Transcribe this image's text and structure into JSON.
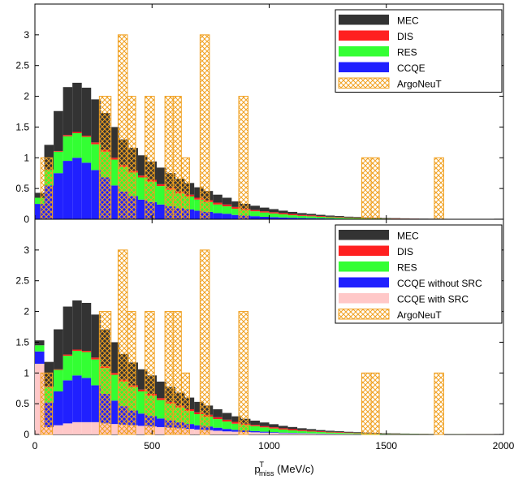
{
  "colors": {
    "MEC": "#333333",
    "DIS": "#ff2020",
    "RES": "#33ff33",
    "CCQE": "#2020ff",
    "CCQE_SRC": "#ffc8c8",
    "ArgoNeuT": "#f0a020"
  },
  "xaxis": {
    "label_main": "p",
    "label_sup": "T",
    "label_sub": "miss",
    "label_unit": " (MeV/c)",
    "ticks": [
      0,
      500,
      1000,
      1500,
      2000
    ],
    "tick_labels": [
      "0",
      "500",
      "1000",
      "1500",
      "2000"
    ]
  },
  "chart_data": [
    {
      "type": "bar",
      "stacked": true,
      "xlim": [
        0,
        2000
      ],
      "ylim": [
        0,
        3.5
      ],
      "yticks": [
        0,
        0.5,
        1,
        1.5,
        2,
        2.5,
        3
      ],
      "ytick_labels": [
        "0",
        "0.5",
        "1",
        "1.5",
        "2",
        "2.5",
        "3"
      ],
      "legend_position": "top-right",
      "bin_width": 40,
      "x": [
        20,
        60,
        100,
        140,
        180,
        220,
        260,
        300,
        340,
        380,
        420,
        460,
        500,
        540,
        580,
        620,
        660,
        700,
        740,
        780,
        820,
        860,
        900,
        940,
        980,
        1020,
        1060,
        1100,
        1140,
        1180,
        1220,
        1260,
        1300,
        1340,
        1380,
        1420,
        1460,
        1500,
        1540,
        1580,
        1620,
        1660,
        1700,
        1740,
        1780,
        1820,
        1860,
        1900,
        1940,
        1980
      ],
      "series": [
        {
          "name": "CCQE",
          "values": [
            0.25,
            0.55,
            0.75,
            0.95,
            1.0,
            0.92,
            0.8,
            0.68,
            0.55,
            0.45,
            0.38,
            0.32,
            0.28,
            0.24,
            0.21,
            0.18,
            0.16,
            0.14,
            0.12,
            0.1,
            0.09,
            0.07,
            0.06,
            0.05,
            0.04,
            0.035,
            0.03,
            0.025,
            0.02,
            0.018,
            0.015,
            0.012,
            0.01,
            0.008,
            0.007,
            0.006,
            0.005,
            0.004,
            0.003,
            0.003,
            0.002,
            0.002,
            0.002,
            0.001,
            0.001,
            0.001,
            0.001,
            0.001,
            0.001,
            0.001
          ]
        },
        {
          "name": "RES",
          "values": [
            0.1,
            0.25,
            0.35,
            0.4,
            0.4,
            0.42,
            0.42,
            0.42,
            0.42,
            0.4,
            0.38,
            0.36,
            0.33,
            0.3,
            0.27,
            0.24,
            0.21,
            0.18,
            0.16,
            0.14,
            0.12,
            0.1,
            0.09,
            0.08,
            0.07,
            0.06,
            0.05,
            0.04,
            0.035,
            0.03,
            0.025,
            0.02,
            0.017,
            0.014,
            0.012,
            0.01,
            0.008,
            0.007,
            0.006,
            0.005,
            0.004,
            0.003,
            0.003,
            0.002,
            0.002,
            0.002,
            0.001,
            0.001,
            0.001,
            0.001
          ]
        },
        {
          "name": "DIS",
          "values": [
            0.0,
            0.01,
            0.01,
            0.02,
            0.02,
            0.02,
            0.03,
            0.03,
            0.03,
            0.03,
            0.03,
            0.03,
            0.03,
            0.03,
            0.03,
            0.03,
            0.03,
            0.03,
            0.03,
            0.03,
            0.03,
            0.03,
            0.02,
            0.02,
            0.02,
            0.02,
            0.02,
            0.02,
            0.015,
            0.015,
            0.012,
            0.01,
            0.01,
            0.008,
            0.007,
            0.006,
            0.005,
            0.004,
            0.004,
            0.003,
            0.003,
            0.002,
            0.002,
            0.002,
            0.001,
            0.001,
            0.001,
            0.001,
            0.001,
            0.001
          ]
        },
        {
          "name": "MEC",
          "values": [
            0.08,
            0.4,
            0.65,
            0.78,
            0.8,
            0.78,
            0.7,
            0.6,
            0.5,
            0.42,
            0.37,
            0.33,
            0.3,
            0.27,
            0.24,
            0.21,
            0.19,
            0.17,
            0.15,
            0.13,
            0.11,
            0.09,
            0.08,
            0.07,
            0.06,
            0.05,
            0.04,
            0.035,
            0.03,
            0.025,
            0.02,
            0.018,
            0.015,
            0.012,
            0.01,
            0.008,
            0.007,
            0.006,
            0.005,
            0.004,
            0.003,
            0.003,
            0.002,
            0.002,
            0.002,
            0.001,
            0.001,
            0.001,
            0.001,
            0.005
          ]
        }
      ],
      "argoneut": {
        "name": "ArgoNeuT",
        "bins": [
          {
            "x0": 25,
            "x1": 75,
            "value": 1
          },
          {
            "x0": 275,
            "x1": 325,
            "value": 2
          },
          {
            "x0": 355,
            "x1": 395,
            "value": 3
          },
          {
            "x0": 395,
            "x1": 430,
            "value": 2
          },
          {
            "x0": 470,
            "x1": 510,
            "value": 2
          },
          {
            "x0": 555,
            "x1": 590,
            "value": 2
          },
          {
            "x0": 590,
            "x1": 625,
            "value": 2
          },
          {
            "x0": 625,
            "x1": 660,
            "value": 1
          },
          {
            "x0": 705,
            "x1": 745,
            "value": 3
          },
          {
            "x0": 870,
            "x1": 910,
            "value": 2
          },
          {
            "x0": 1395,
            "x1": 1435,
            "value": 1
          },
          {
            "x0": 1435,
            "x1": 1470,
            "value": 1
          },
          {
            "x0": 1705,
            "x1": 1745,
            "value": 1
          }
        ]
      },
      "legend": [
        "MEC",
        "DIS",
        "RES",
        "CCQE",
        "ArgoNeuT"
      ]
    },
    {
      "type": "bar",
      "stacked": true,
      "xlim": [
        0,
        2000
      ],
      "ylim": [
        0,
        3.5
      ],
      "yticks": [
        0,
        0.5,
        1,
        1.5,
        2,
        2.5,
        3
      ],
      "ytick_labels": [
        "0",
        "0.5",
        "1",
        "1.5",
        "2",
        "2.5",
        "3"
      ],
      "legend_position": "top-right",
      "bin_width": 40,
      "x": [
        20,
        60,
        100,
        140,
        180,
        220,
        260,
        300,
        340,
        380,
        420,
        460,
        500,
        540,
        580,
        620,
        660,
        700,
        740,
        780,
        820,
        860,
        900,
        940,
        980,
        1020,
        1060,
        1100,
        1140,
        1180,
        1220,
        1260,
        1300,
        1340,
        1380,
        1420,
        1460,
        1500,
        1540,
        1580,
        1620,
        1660,
        1700,
        1740,
        1780,
        1820,
        1860,
        1900,
        1940,
        1980
      ],
      "series": [
        {
          "name": "CCQE with SRC",
          "values": [
            1.15,
            0.12,
            0.15,
            0.18,
            0.2,
            0.2,
            0.2,
            0.18,
            0.17,
            0.16,
            0.15,
            0.14,
            0.13,
            0.12,
            0.11,
            0.1,
            0.09,
            0.08,
            0.07,
            0.06,
            0.05,
            0.045,
            0.04,
            0.035,
            0.03,
            0.025,
            0.02,
            0.018,
            0.015,
            0.012,
            0.01,
            0.009,
            0.008,
            0.007,
            0.006,
            0.005,
            0.004,
            0.003,
            0.003,
            0.002,
            0.002,
            0.002,
            0.001,
            0.001,
            0.001,
            0.001,
            0.001,
            0.001,
            0.001,
            0.001
          ]
        },
        {
          "name": "CCQE without SRC",
          "values": [
            0.2,
            0.4,
            0.55,
            0.7,
            0.76,
            0.72,
            0.6,
            0.48,
            0.38,
            0.3,
            0.24,
            0.2,
            0.17,
            0.14,
            0.12,
            0.1,
            0.08,
            0.07,
            0.06,
            0.05,
            0.04,
            0.03,
            0.025,
            0.02,
            0.015,
            0.012,
            0.01,
            0.008,
            0.006,
            0.005,
            0.004,
            0.003,
            0.002,
            0.002,
            0.002,
            0.001,
            0.001,
            0.001,
            0.001,
            0.001,
            0.001,
            0.0,
            0.0,
            0.0,
            0.0,
            0.0,
            0.0,
            0.0,
            0.0,
            0.0
          ]
        },
        {
          "name": "RES",
          "values": [
            0.1,
            0.25,
            0.35,
            0.4,
            0.4,
            0.42,
            0.42,
            0.42,
            0.42,
            0.4,
            0.38,
            0.36,
            0.33,
            0.3,
            0.27,
            0.24,
            0.21,
            0.18,
            0.16,
            0.14,
            0.12,
            0.1,
            0.09,
            0.08,
            0.07,
            0.06,
            0.05,
            0.04,
            0.035,
            0.03,
            0.025,
            0.02,
            0.017,
            0.014,
            0.012,
            0.01,
            0.008,
            0.007,
            0.006,
            0.005,
            0.004,
            0.003,
            0.003,
            0.002,
            0.002,
            0.002,
            0.001,
            0.001,
            0.001,
            0.001
          ]
        },
        {
          "name": "DIS",
          "values": [
            0.0,
            0.01,
            0.01,
            0.02,
            0.02,
            0.02,
            0.03,
            0.03,
            0.03,
            0.03,
            0.03,
            0.03,
            0.03,
            0.03,
            0.03,
            0.03,
            0.03,
            0.03,
            0.03,
            0.03,
            0.03,
            0.03,
            0.02,
            0.02,
            0.02,
            0.02,
            0.02,
            0.02,
            0.015,
            0.015,
            0.012,
            0.01,
            0.01,
            0.008,
            0.007,
            0.006,
            0.005,
            0.004,
            0.004,
            0.003,
            0.003,
            0.002,
            0.002,
            0.002,
            0.001,
            0.001,
            0.001,
            0.001,
            0.001,
            0.001
          ]
        },
        {
          "name": "MEC",
          "values": [
            0.08,
            0.4,
            0.65,
            0.78,
            0.8,
            0.78,
            0.7,
            0.6,
            0.5,
            0.42,
            0.37,
            0.33,
            0.3,
            0.27,
            0.24,
            0.21,
            0.19,
            0.17,
            0.15,
            0.13,
            0.11,
            0.09,
            0.08,
            0.07,
            0.06,
            0.05,
            0.04,
            0.035,
            0.03,
            0.025,
            0.02,
            0.018,
            0.015,
            0.012,
            0.01,
            0.008,
            0.007,
            0.006,
            0.005,
            0.004,
            0.003,
            0.003,
            0.002,
            0.002,
            0.002,
            0.001,
            0.001,
            0.001,
            0.001,
            0.005
          ]
        }
      ],
      "argoneut": {
        "name": "ArgoNeuT",
        "bins": [
          {
            "x0": 25,
            "x1": 75,
            "value": 1
          },
          {
            "x0": 275,
            "x1": 325,
            "value": 2
          },
          {
            "x0": 355,
            "x1": 395,
            "value": 3
          },
          {
            "x0": 395,
            "x1": 430,
            "value": 2
          },
          {
            "x0": 470,
            "x1": 510,
            "value": 2
          },
          {
            "x0": 555,
            "x1": 590,
            "value": 2
          },
          {
            "x0": 590,
            "x1": 625,
            "value": 2
          },
          {
            "x0": 625,
            "x1": 660,
            "value": 1
          },
          {
            "x0": 705,
            "x1": 745,
            "value": 3
          },
          {
            "x0": 870,
            "x1": 910,
            "value": 2
          },
          {
            "x0": 1395,
            "x1": 1435,
            "value": 1
          },
          {
            "x0": 1435,
            "x1": 1470,
            "value": 1
          },
          {
            "x0": 1705,
            "x1": 1745,
            "value": 1
          }
        ]
      },
      "legend": [
        "MEC",
        "DIS",
        "RES",
        "CCQE without SRC",
        "CCQE with SRC",
        "ArgoNeuT"
      ]
    }
  ]
}
